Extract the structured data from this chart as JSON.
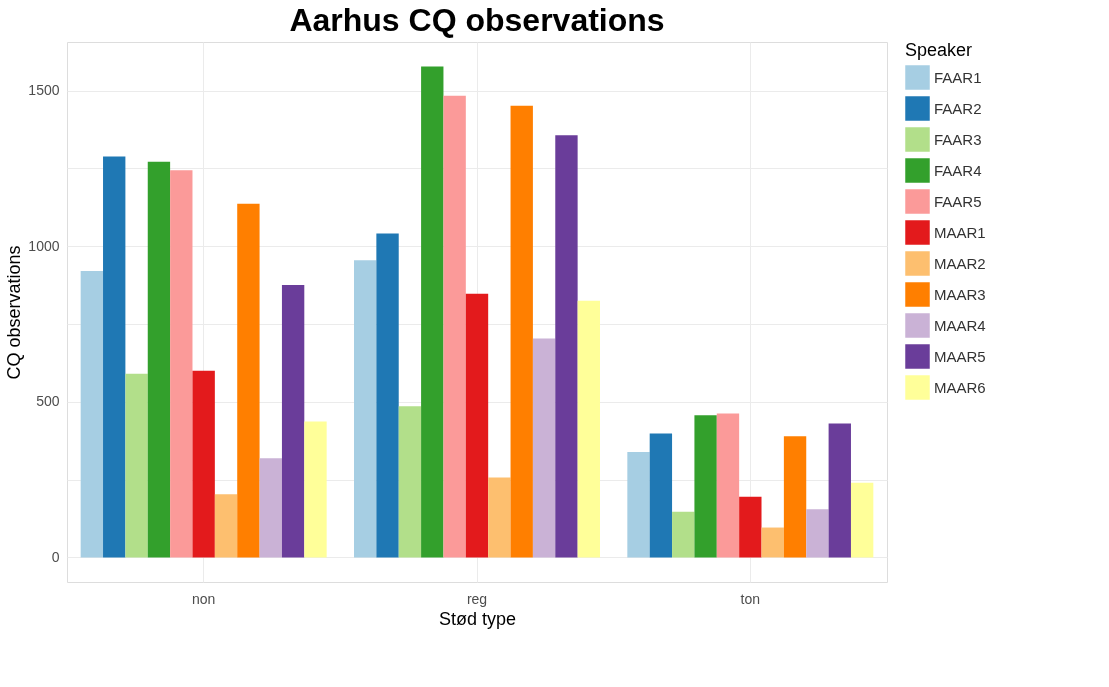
{
  "chart_data": {
    "type": "bar",
    "title": "Aarhus CQ observations",
    "xlabel": "Stød type",
    "ylabel": "CQ observations",
    "legend_title": "Speaker",
    "categories": [
      "non",
      "reg",
      "ton"
    ],
    "series": [
      {
        "name": "FAAR1",
        "color": "#a6cee3",
        "values": [
          920,
          955,
          339
        ]
      },
      {
        "name": "FAAR2",
        "color": "#1f78b4",
        "values": [
          1288,
          1041,
          398
        ]
      },
      {
        "name": "FAAR3",
        "color": "#b2df8a",
        "values": [
          590,
          486,
          147
        ]
      },
      {
        "name": "FAAR4",
        "color": "#33a02c",
        "values": [
          1271,
          1577,
          457
        ]
      },
      {
        "name": "FAAR5",
        "color": "#fb9a99",
        "values": [
          1244,
          1483,
          462
        ]
      },
      {
        "name": "MAAR1",
        "color": "#e31a1c",
        "values": [
          600,
          847,
          195
        ]
      },
      {
        "name": "MAAR2",
        "color": "#fdbf6f",
        "values": [
          203,
          257,
          96
        ]
      },
      {
        "name": "MAAR3",
        "color": "#ff7f00",
        "values": [
          1136,
          1451,
          389
        ]
      },
      {
        "name": "MAAR4",
        "color": "#cab2d6",
        "values": [
          319,
          703,
          155
        ]
      },
      {
        "name": "MAAR5",
        "color": "#6a3d9a",
        "values": [
          875,
          1356,
          430
        ]
      },
      {
        "name": "MAAR6",
        "color": "#ffff99",
        "values": [
          437,
          825,
          240
        ]
      }
    ],
    "ylim": [
      -79,
      1656
    ],
    "yticks": [
      0,
      {
        "value": 250,
        "label": null
      },
      500,
      {
        "value": 750,
        "label": null
      },
      1000,
      {
        "value": 1250,
        "label": null
      },
      1500
    ],
    "grid": true,
    "legend": "right"
  }
}
